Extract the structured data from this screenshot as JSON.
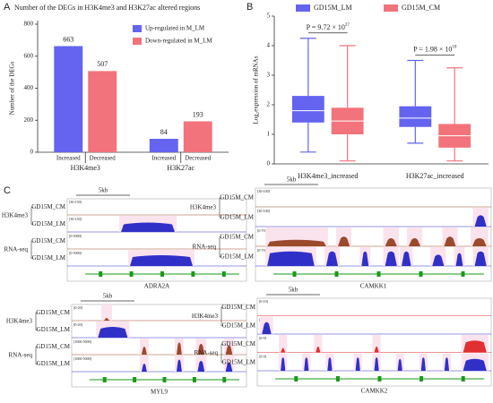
{
  "panel_letters": [
    "A",
    "B",
    "C"
  ],
  "chart_data": [
    {
      "type": "bar",
      "title": "Number of the DEGs in H3K4me3 and H3K27ac altered regions",
      "ylabel": "Number of the DEGs",
      "categories": [
        "H3K4me3",
        "H3K27ac"
      ],
      "bar_labels": [
        "Increased",
        "Decreased"
      ],
      "series": [
        {
          "name": "Up-regulated in M_LM",
          "color": "#6464f0",
          "values": [
            663,
            84
          ]
        },
        {
          "name": "Down-regulated in M_LM",
          "color": "#f2737b",
          "values": [
            507,
            193
          ]
        }
      ],
      "ylim": [
        0,
        800
      ],
      "yticks": [
        0,
        200,
        400,
        600,
        800
      ],
      "legend": "upper right"
    },
    {
      "type": "box",
      "ylabel": "Log₂expression of mRNAs",
      "categories": [
        "H3K4me3_increased",
        "H3K27ac_increased"
      ],
      "series": [
        {
          "name": "GD15M_LM",
          "color": "#6464f0",
          "whislo": [
            0.4,
            0.7
          ],
          "q1": [
            1.4,
            1.25
          ],
          "med": [
            1.8,
            1.55
          ],
          "q3": [
            2.3,
            1.95
          ],
          "whishi": [
            4.25,
            3.5
          ]
        },
        {
          "name": "GD15M_CM",
          "color": "#f2737b",
          "whislo": [
            0.1,
            0.1
          ],
          "q1": [
            1.0,
            0.55
          ],
          "med": [
            1.45,
            0.95
          ],
          "q3": [
            1.9,
            1.35
          ],
          "whishi": [
            4.0,
            3.25
          ]
        }
      ],
      "annotations": [
        {
          "text": "P = 9.72 × 10",
          "superscript": "27"
        },
        {
          "text": "P = 1.98 × 10",
          "superscript": "10"
        }
      ],
      "ylim": [
        0,
        5
      ],
      "yticks": [
        0,
        1,
        2,
        3,
        4,
        5
      ],
      "legend": "top"
    }
  ],
  "gene_tracks": {
    "panels": [
      {
        "gene": "ADRA2A",
        "scale": "5kb",
        "groups": [
          {
            "label": "H3K4me3",
            "tracks": [
              {
                "name": "GD15M_CM",
                "range": "[30-150]"
              },
              {
                "name": "GD15M_LM",
                "range": "[30-150]"
              }
            ]
          },
          {
            "label": "RNA-seq",
            "tracks": [
              {
                "name": "GD15M_CM",
                "range": "[0-5000]"
              },
              {
                "name": "GD15M_LM",
                "range": "[0-5000]"
              }
            ]
          }
        ]
      },
      {
        "gene": "CAMKK1",
        "scale": "5kb",
        "groups": [
          {
            "label": "H3K4me3",
            "tracks": [
              {
                "name": "GD15M_CM",
                "range": "[30-100]"
              },
              {
                "name": "GD15M_LM",
                "range": "[30-100]"
              }
            ]
          },
          {
            "label": "RNA-seq",
            "tracks": [
              {
                "name": "GD15M_CM",
                "range": "[0-70]"
              },
              {
                "name": "GD15M_LM",
                "range": "[0-70]"
              }
            ]
          }
        ]
      },
      {
        "gene": "MYL9",
        "scale": "5kb",
        "groups": [
          {
            "label": "H3K4me3",
            "tracks": [
              {
                "name": "GD15M_CM",
                "range": "[0-20]"
              },
              {
                "name": "GD15M_LM",
                "range": "[0-20]"
              }
            ]
          },
          {
            "label": "RNA-seq",
            "tracks": [
              {
                "name": "GD15M_CM",
                "range": "[1000-5000]"
              },
              {
                "name": "GD15M_LM",
                "range": "[1000-5000]"
              }
            ]
          }
        ]
      },
      {
        "gene": "CAMKK2",
        "scale": "5kb",
        "groups": [
          {
            "label": "H3K4me3",
            "tracks": [
              {
                "name": "GD15M_CM",
                "range": "[0-10]"
              },
              {
                "name": "GD15M_LM",
                "range": "[0-10]"
              }
            ]
          },
          {
            "label": "RNA-seq",
            "tracks": [
              {
                "name": "GD15M_CM",
                "range": "[0-9]"
              },
              {
                "name": "GD15M_LM",
                "range": "[0-9]"
              }
            ]
          }
        ]
      }
    ]
  }
}
